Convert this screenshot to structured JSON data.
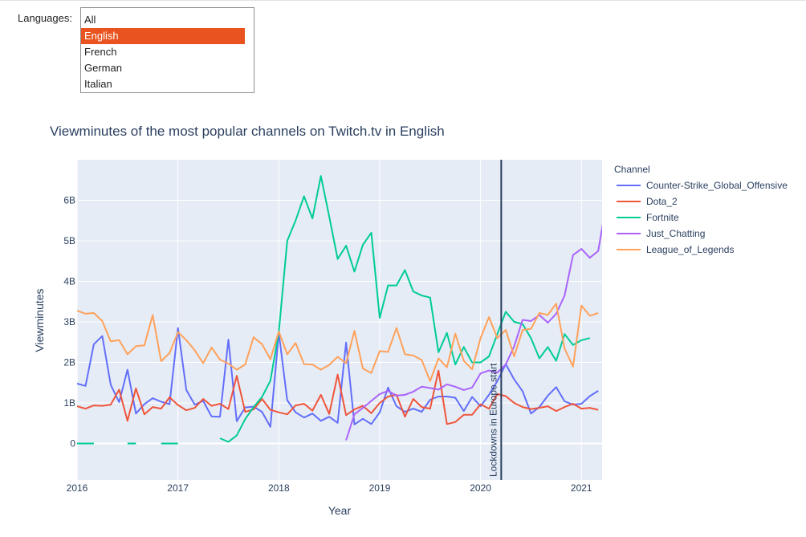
{
  "filter": {
    "label": "Languages:",
    "options": [
      "All",
      "English",
      "French",
      "German",
      "Italian"
    ],
    "selected": "English"
  },
  "colors": {
    "plot_bg": "#e5ecf6",
    "grid": "#ffffff",
    "text": "#2a3f5f",
    "selected_option": "#e9531f",
    "annotation_line": "#2a3f5f"
  },
  "chart_data": {
    "type": "line",
    "title": "Viewminutes of the most popular channels on Twitch.tv in English",
    "xlabel": "Year",
    "ylabel": "Viewminutes",
    "xlim": [
      "2016-01-01",
      "2021-03-15"
    ],
    "ylim": [
      -0.9,
      7.0
    ],
    "x_ticks": [
      "2016",
      "2017",
      "2018",
      "2019",
      "2020",
      "2021"
    ],
    "y_ticks": [
      {
        "value": 0,
        "label": "0"
      },
      {
        "value": 1,
        "label": "1B"
      },
      {
        "value": 2,
        "label": "2B"
      },
      {
        "value": 3,
        "label": "3B"
      },
      {
        "value": 4,
        "label": "4B"
      },
      {
        "value": 5,
        "label": "5B"
      },
      {
        "value": 6,
        "label": "6B"
      }
    ],
    "grid": true,
    "legend": {
      "title": "Channel",
      "placement": "right"
    },
    "annotation": {
      "date": "2020-03-15",
      "label": "Lockdowns in Europe start"
    },
    "series": [
      {
        "name": "Counter-Strike_Global_Offensive",
        "color": "#636efa",
        "start": "2016-01",
        "values": [
          1.48,
          1.42,
          2.45,
          2.65,
          1.45,
          1.02,
          1.82,
          0.74,
          0.97,
          1.12,
          1.03,
          0.97,
          2.85,
          1.32,
          0.96,
          1.05,
          0.67,
          0.66,
          2.56,
          0.55,
          0.89,
          0.91,
          0.78,
          0.41,
          2.73,
          1.07,
          0.77,
          0.64,
          0.74,
          0.56,
          0.66,
          0.51,
          2.49,
          0.47,
          0.61,
          0.48,
          0.77,
          1.38,
          0.92,
          0.78,
          0.86,
          0.78,
          1.08,
          1.16,
          1.16,
          1.13,
          0.8,
          1.15,
          0.92,
          1.2,
          1.54,
          1.96,
          1.58,
          1.29,
          0.74,
          0.9,
          1.18,
          1.39,
          1.04,
          0.96,
          0.98,
          1.17,
          1.3
        ]
      },
      {
        "name": "Dota_2",
        "color": "#ef553b",
        "start": "2016-01",
        "values": [
          0.92,
          0.86,
          0.94,
          0.93,
          0.96,
          1.33,
          0.56,
          1.36,
          0.72,
          0.9,
          0.86,
          1.14,
          0.95,
          0.82,
          0.88,
          1.1,
          0.93,
          0.98,
          0.85,
          1.67,
          0.78,
          0.84,
          1.1,
          0.83,
          0.77,
          0.72,
          0.94,
          0.98,
          0.81,
          1.2,
          0.73,
          1.7,
          0.7,
          0.84,
          0.93,
          0.75,
          1.0,
          1.16,
          1.2,
          0.66,
          1.1,
          0.9,
          0.86,
          1.8,
          0.48,
          0.53,
          0.71,
          0.71,
          0.97,
          0.86,
          1.22,
          1.17,
          1.0,
          0.9,
          0.85,
          0.88,
          0.92,
          0.8,
          0.9,
          0.98,
          0.86,
          0.88,
          0.83
        ]
      },
      {
        "name": "Fortnite",
        "color": "#00cc96",
        "segments": [
          {
            "start": "2016-01",
            "values": [
              0.0,
              0.0,
              0.0
            ]
          },
          {
            "start": "2016-07",
            "values": [
              0.0,
              0.0
            ]
          },
          {
            "start": "2016-11",
            "values": [
              0.0,
              0.0,
              0.0
            ]
          },
          {
            "start": "2017-06",
            "values": [
              0.13,
              0.04,
              0.2,
              0.6,
              0.9,
              1.15,
              1.55,
              2.75,
              5.0,
              5.5,
              6.1,
              5.55,
              6.6,
              5.6,
              4.55,
              4.88,
              4.24,
              4.9,
              5.2,
              3.1,
              3.9,
              3.9,
              4.28,
              3.75,
              3.65,
              3.6,
              2.25,
              2.73,
              1.95,
              2.38,
              2.0,
              2.0,
              2.15,
              2.7,
              3.25,
              3.0,
              2.95,
              2.6,
              2.1,
              2.38,
              2.04,
              2.7,
              2.43,
              2.55,
              2.6
            ]
          }
        ]
      },
      {
        "name": "Just_Chatting",
        "color": "#ab63fa",
        "start": "2018-09",
        "values": [
          0.08,
          0.72,
          0.88,
          1.05,
          1.22,
          1.3,
          1.18,
          1.2,
          1.28,
          1.4,
          1.37,
          1.33,
          1.46,
          1.4,
          1.32,
          1.38,
          1.73,
          1.8,
          1.75,
          1.95,
          2.4,
          3.05,
          3.02,
          3.17,
          2.98,
          3.2,
          3.65,
          4.65,
          4.8,
          4.58,
          4.75,
          5.98
        ]
      },
      {
        "name": "League_of_Legends",
        "color": "#ffa15a",
        "start": "2016-01",
        "values": [
          3.28,
          3.2,
          3.22,
          3.02,
          2.52,
          2.55,
          2.2,
          2.4,
          2.42,
          3.17,
          2.03,
          2.23,
          2.75,
          2.55,
          2.3,
          1.98,
          2.37,
          2.07,
          1.97,
          1.82,
          1.95,
          2.62,
          2.45,
          2.08,
          2.76,
          2.2,
          2.48,
          1.96,
          1.95,
          1.82,
          1.94,
          2.14,
          1.98,
          2.78,
          1.85,
          1.74,
          2.28,
          2.26,
          2.85,
          2.2,
          2.17,
          2.06,
          1.54,
          2.1,
          1.88,
          2.71,
          2.04,
          1.83,
          2.6,
          3.12,
          2.6,
          2.8,
          2.15,
          2.8,
          2.83,
          3.22,
          3.17,
          3.45,
          2.34,
          1.9,
          3.4,
          3.15,
          3.22
        ]
      }
    ]
  }
}
